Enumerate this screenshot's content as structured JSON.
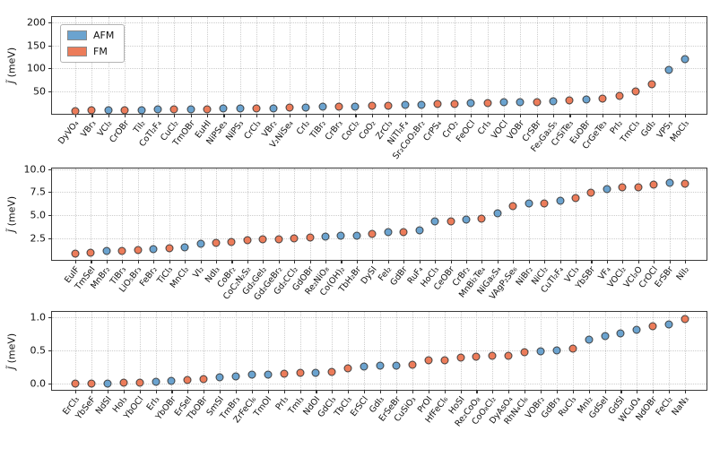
{
  "figure": {
    "ylabel": {
      "symbol": "J̃",
      "unit": " (meV)"
    },
    "legend": [
      {
        "label": "AFM",
        "key": "AFM"
      },
      {
        "label": "FM",
        "key": "FM"
      }
    ],
    "colors": {
      "AFM": "#6ba3cf",
      "FM": "#ec7c5a",
      "marker_edge": "#3f3f3f",
      "grid": "#cdcdcd",
      "spine": "#3a3a3a"
    }
  },
  "chart_data": [
    {
      "type": "scatter",
      "panel": "top",
      "ylabel": "J̃ (meV)",
      "ylim": [
        0,
        200
      ],
      "render_ylim": [
        -2,
        211
      ],
      "yticks": [
        {
          "value": 50,
          "label": "50"
        },
        {
          "value": 100,
          "label": "100"
        },
        {
          "value": 150,
          "label": "150"
        },
        {
          "value": 200,
          "label": "200"
        }
      ],
      "legend_position": "upper-left",
      "grid": true,
      "categories": [
        "DyVO₄",
        "VBr₃",
        "VCl₂",
        "CrOBr",
        "TiI₂",
        "CoTl₂F₄",
        "CuCl₂",
        "TmOBr",
        "EuHI",
        "NiPSe₃",
        "NiPS₃",
        "CrCl₃",
        "VBr₂",
        "V₂NiSe₄",
        "CrI₂",
        "TiBr₂",
        "CrBr₃",
        "CoCl₂",
        "CoO₂",
        "ZrCl₃",
        "NiTl₂F₄",
        "Sr₂CoO₂Br₂",
        "CrPS₄",
        "CrO₂",
        "FeOCl",
        "CrI₃",
        "VOCl",
        "VOBr",
        "CrSBr",
        "Fe₂Ga₂S₅",
        "CrSiTe₃",
        "EuOBr",
        "CrGeTe₃",
        "PrI₂",
        "TmCl₃",
        "GdI₂",
        "VPS₃",
        "MoCl₃"
      ],
      "values": [
        8,
        9,
        9.5,
        10,
        10.5,
        11,
        11.5,
        12,
        12.5,
        13,
        13.5,
        14,
        14.5,
        15,
        16,
        16.5,
        17,
        18,
        19,
        20,
        21,
        22,
        23,
        24,
        25,
        26,
        27,
        27.5,
        28,
        29,
        31,
        33,
        35,
        40,
        50,
        65,
        97,
        120
      ],
      "magnetism": [
        "FM",
        "FM",
        "AFM",
        "FM",
        "AFM",
        "AFM",
        "FM",
        "AFM",
        "FM",
        "AFM",
        "AFM",
        "FM",
        "AFM",
        "FM",
        "AFM",
        "AFM",
        "FM",
        "AFM",
        "FM",
        "FM",
        "AFM",
        "AFM",
        "FM",
        "FM",
        "AFM",
        "FM",
        "AFM",
        "AFM",
        "FM",
        "AFM",
        "FM",
        "AFM",
        "FM",
        "FM",
        "FM",
        "FM",
        "AFM",
        "AFM"
      ]
    },
    {
      "type": "scatter",
      "panel": "middle",
      "ylabel": "J̃ (meV)",
      "ylim": [
        0,
        10
      ],
      "render_ylim": [
        -0.05,
        10.05
      ],
      "yticks": [
        {
          "value": 2.5,
          "label": "2.5"
        },
        {
          "value": 5.0,
          "label": "5.0"
        },
        {
          "value": 7.5,
          "label": "7.5"
        },
        {
          "value": 10.0,
          "label": "10.0"
        }
      ],
      "grid": true,
      "categories": [
        "EuIF",
        "TmSeI",
        "MnBr₂",
        "TiBr₃",
        "LiO₅Br₃",
        "FeBr₂",
        "TiCl₃",
        "MnCl₂",
        "VI₂",
        "NdI₃",
        "CoBr₂",
        "CoC₂N₂S₂",
        "Gd₂GeI₂",
        "Gd₂GeBr₂",
        "Gd₂CCl₂",
        "GdOBr",
        "Re₂NiO₈",
        "Co(OH)₂",
        "TbH₂Br",
        "DySI",
        "FeI₂",
        "GdBr",
        "RuF₄",
        "HoCl₃",
        "CeOBr",
        "CrBr₂",
        "MnBi₂Te₄",
        "NiGa₂S₄",
        "VAgP₂Se₆",
        "NiBr₂",
        "NiCl₂",
        "CuTl₂F₄",
        "VCl₃",
        "YbSBr",
        "VF₄",
        "VOCl₂",
        "VCl₂O",
        "CrOCl",
        "ErSBr",
        "NiI₂"
      ],
      "values": [
        0.8,
        0.95,
        1.1,
        1.1,
        1.2,
        1.35,
        1.4,
        1.55,
        1.9,
        2.0,
        2.05,
        2.25,
        2.35,
        2.4,
        2.5,
        2.55,
        2.65,
        2.75,
        2.75,
        3.0,
        3.2,
        3.2,
        3.4,
        4.3,
        4.35,
        4.5,
        4.65,
        5.2,
        6.0,
        6.3,
        6.3,
        6.6,
        6.85,
        7.4,
        7.8,
        8.0,
        8.05,
        8.3,
        8.5,
        8.45
      ],
      "magnetism": [
        "FM",
        "FM",
        "AFM",
        "FM",
        "FM",
        "AFM",
        "FM",
        "AFM",
        "AFM",
        "FM",
        "FM",
        "FM",
        "FM",
        "FM",
        "FM",
        "FM",
        "AFM",
        "AFM",
        "AFM",
        "FM",
        "AFM",
        "FM",
        "AFM",
        "AFM",
        "FM",
        "AFM",
        "FM",
        "AFM",
        "FM",
        "AFM",
        "FM",
        "AFM",
        "FM",
        "FM",
        "AFM",
        "FM",
        "FM",
        "FM",
        "AFM",
        "FM"
      ]
    },
    {
      "type": "scatter",
      "panel": "bottom",
      "ylabel": "J̃ (meV)",
      "ylim": [
        0,
        1
      ],
      "render_ylim": [
        -0.122,
        1.081
      ],
      "yticks": [
        {
          "value": 0.0,
          "label": "0.0"
        },
        {
          "value": 0.5,
          "label": "0.5"
        },
        {
          "value": 1.0,
          "label": "1.0"
        }
      ],
      "grid": true,
      "categories": [
        "ErCl₃",
        "YbSeF",
        "NdSI",
        "HoI₃",
        "YbOCl",
        "ErI₃",
        "YbOBr",
        "ErSeI",
        "TbOBr",
        "SmSI",
        "TmBr₃",
        "ZrFeCl₆",
        "TmOI",
        "PrI₃",
        "TmI₃",
        "NdOI",
        "GdCl₃",
        "TbCl₃",
        "ErSCl",
        "GdI₃",
        "ErSeBr",
        "CuSiO₃",
        "PrOI",
        "HfFeCl₆",
        "HoSI",
        "Re₂CoO₈",
        "CoO₈Cl₂",
        "DyAsO₄",
        "RhN₄Cl₆",
        "VOBr₂",
        "GdBr₃",
        "RuCl₃",
        "MnI₂",
        "GdSeI",
        "GdSI",
        "WCuO₄",
        "NdOBr",
        "FeCl₂",
        "NaN₃"
      ],
      "values": [
        0.0,
        0.0,
        0.0,
        0.01,
        0.02,
        0.03,
        0.04,
        0.06,
        0.07,
        0.1,
        0.11,
        0.13,
        0.14,
        0.15,
        0.16,
        0.16,
        0.18,
        0.23,
        0.26,
        0.27,
        0.27,
        0.28,
        0.35,
        0.35,
        0.39,
        0.4,
        0.42,
        0.42,
        0.48,
        0.49,
        0.5,
        0.53,
        0.66,
        0.72,
        0.76,
        0.81,
        0.86,
        0.89,
        0.97
      ],
      "magnetism": [
        "FM",
        "FM",
        "AFM",
        "FM",
        "FM",
        "AFM",
        "AFM",
        "FM",
        "FM",
        "AFM",
        "AFM",
        "AFM",
        "AFM",
        "FM",
        "FM",
        "AFM",
        "FM",
        "FM",
        "AFM",
        "AFM",
        "AFM",
        "FM",
        "FM",
        "FM",
        "FM",
        "FM",
        "FM",
        "FM",
        "FM",
        "AFM",
        "AFM",
        "FM",
        "AFM",
        "AFM",
        "AFM",
        "AFM",
        "FM",
        "AFM",
        "FM"
      ]
    }
  ]
}
